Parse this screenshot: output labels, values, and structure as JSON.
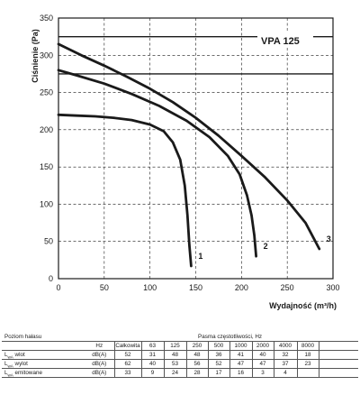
{
  "chart_data": {
    "type": "line",
    "title": "VPA 125",
    "xlabel": "Wydajność (m³/h)",
    "ylabel": "Ciśnienie (Pa)",
    "xlim": [
      0,
      300
    ],
    "ylim": [
      0,
      350
    ],
    "xticks": [
      0,
      50,
      100,
      150,
      200,
      250,
      300
    ],
    "yticks": [
      0,
      50,
      100,
      150,
      200,
      250,
      300,
      350
    ],
    "grid": true,
    "series": [
      {
        "name": "1",
        "color": "#1a1a1a",
        "x": [
          0,
          20,
          40,
          60,
          80,
          100,
          115,
          125,
          133,
          138,
          141,
          143,
          145
        ],
        "y": [
          220,
          219,
          218,
          216,
          213,
          207,
          198,
          183,
          160,
          125,
          85,
          45,
          17
        ]
      },
      {
        "name": "2",
        "color": "#1a1a1a",
        "x": [
          0,
          20,
          50,
          80,
          110,
          140,
          165,
          185,
          198,
          206,
          211,
          214,
          216
        ],
        "y": [
          280,
          273,
          262,
          248,
          232,
          212,
          190,
          165,
          140,
          112,
          85,
          58,
          30
        ]
      },
      {
        "name": "3",
        "color": "#1a1a1a",
        "x": [
          0,
          25,
          50,
          75,
          100,
          125,
          150,
          175,
          200,
          225,
          250,
          270,
          285
        ],
        "y": [
          315,
          300,
          286,
          271,
          255,
          237,
          216,
          192,
          165,
          137,
          105,
          75,
          40
        ]
      }
    ],
    "reference_lines_y": [
      275,
      325
    ]
  },
  "noise_table": {
    "title": "Poziom hałasu",
    "band_header": "Pasma częstotliwości, Hz",
    "unit_header": "Hz",
    "columns": [
      "Całkowita",
      "63",
      "125",
      "250",
      "500",
      "1000",
      "2000",
      "4000",
      "8000"
    ],
    "rows": [
      {
        "label": "L",
        "sub": "wA",
        "suffix": " wlot",
        "unit": "dB(A)",
        "values": [
          "52",
          "31",
          "48",
          "48",
          "36",
          "41",
          "40",
          "32",
          "18"
        ]
      },
      {
        "label": "L",
        "sub": "wA",
        "suffix": " wylot",
        "unit": "dB(A)",
        "values": [
          "62",
          "40",
          "53",
          "56",
          "52",
          "47",
          "47",
          "37",
          "23"
        ]
      },
      {
        "label": "L",
        "sub": "wA",
        "suffix": " emitowane",
        "unit": "dB(A)",
        "values": [
          "33",
          "9",
          "24",
          "28",
          "17",
          "16",
          "3",
          "4",
          ""
        ]
      }
    ]
  }
}
